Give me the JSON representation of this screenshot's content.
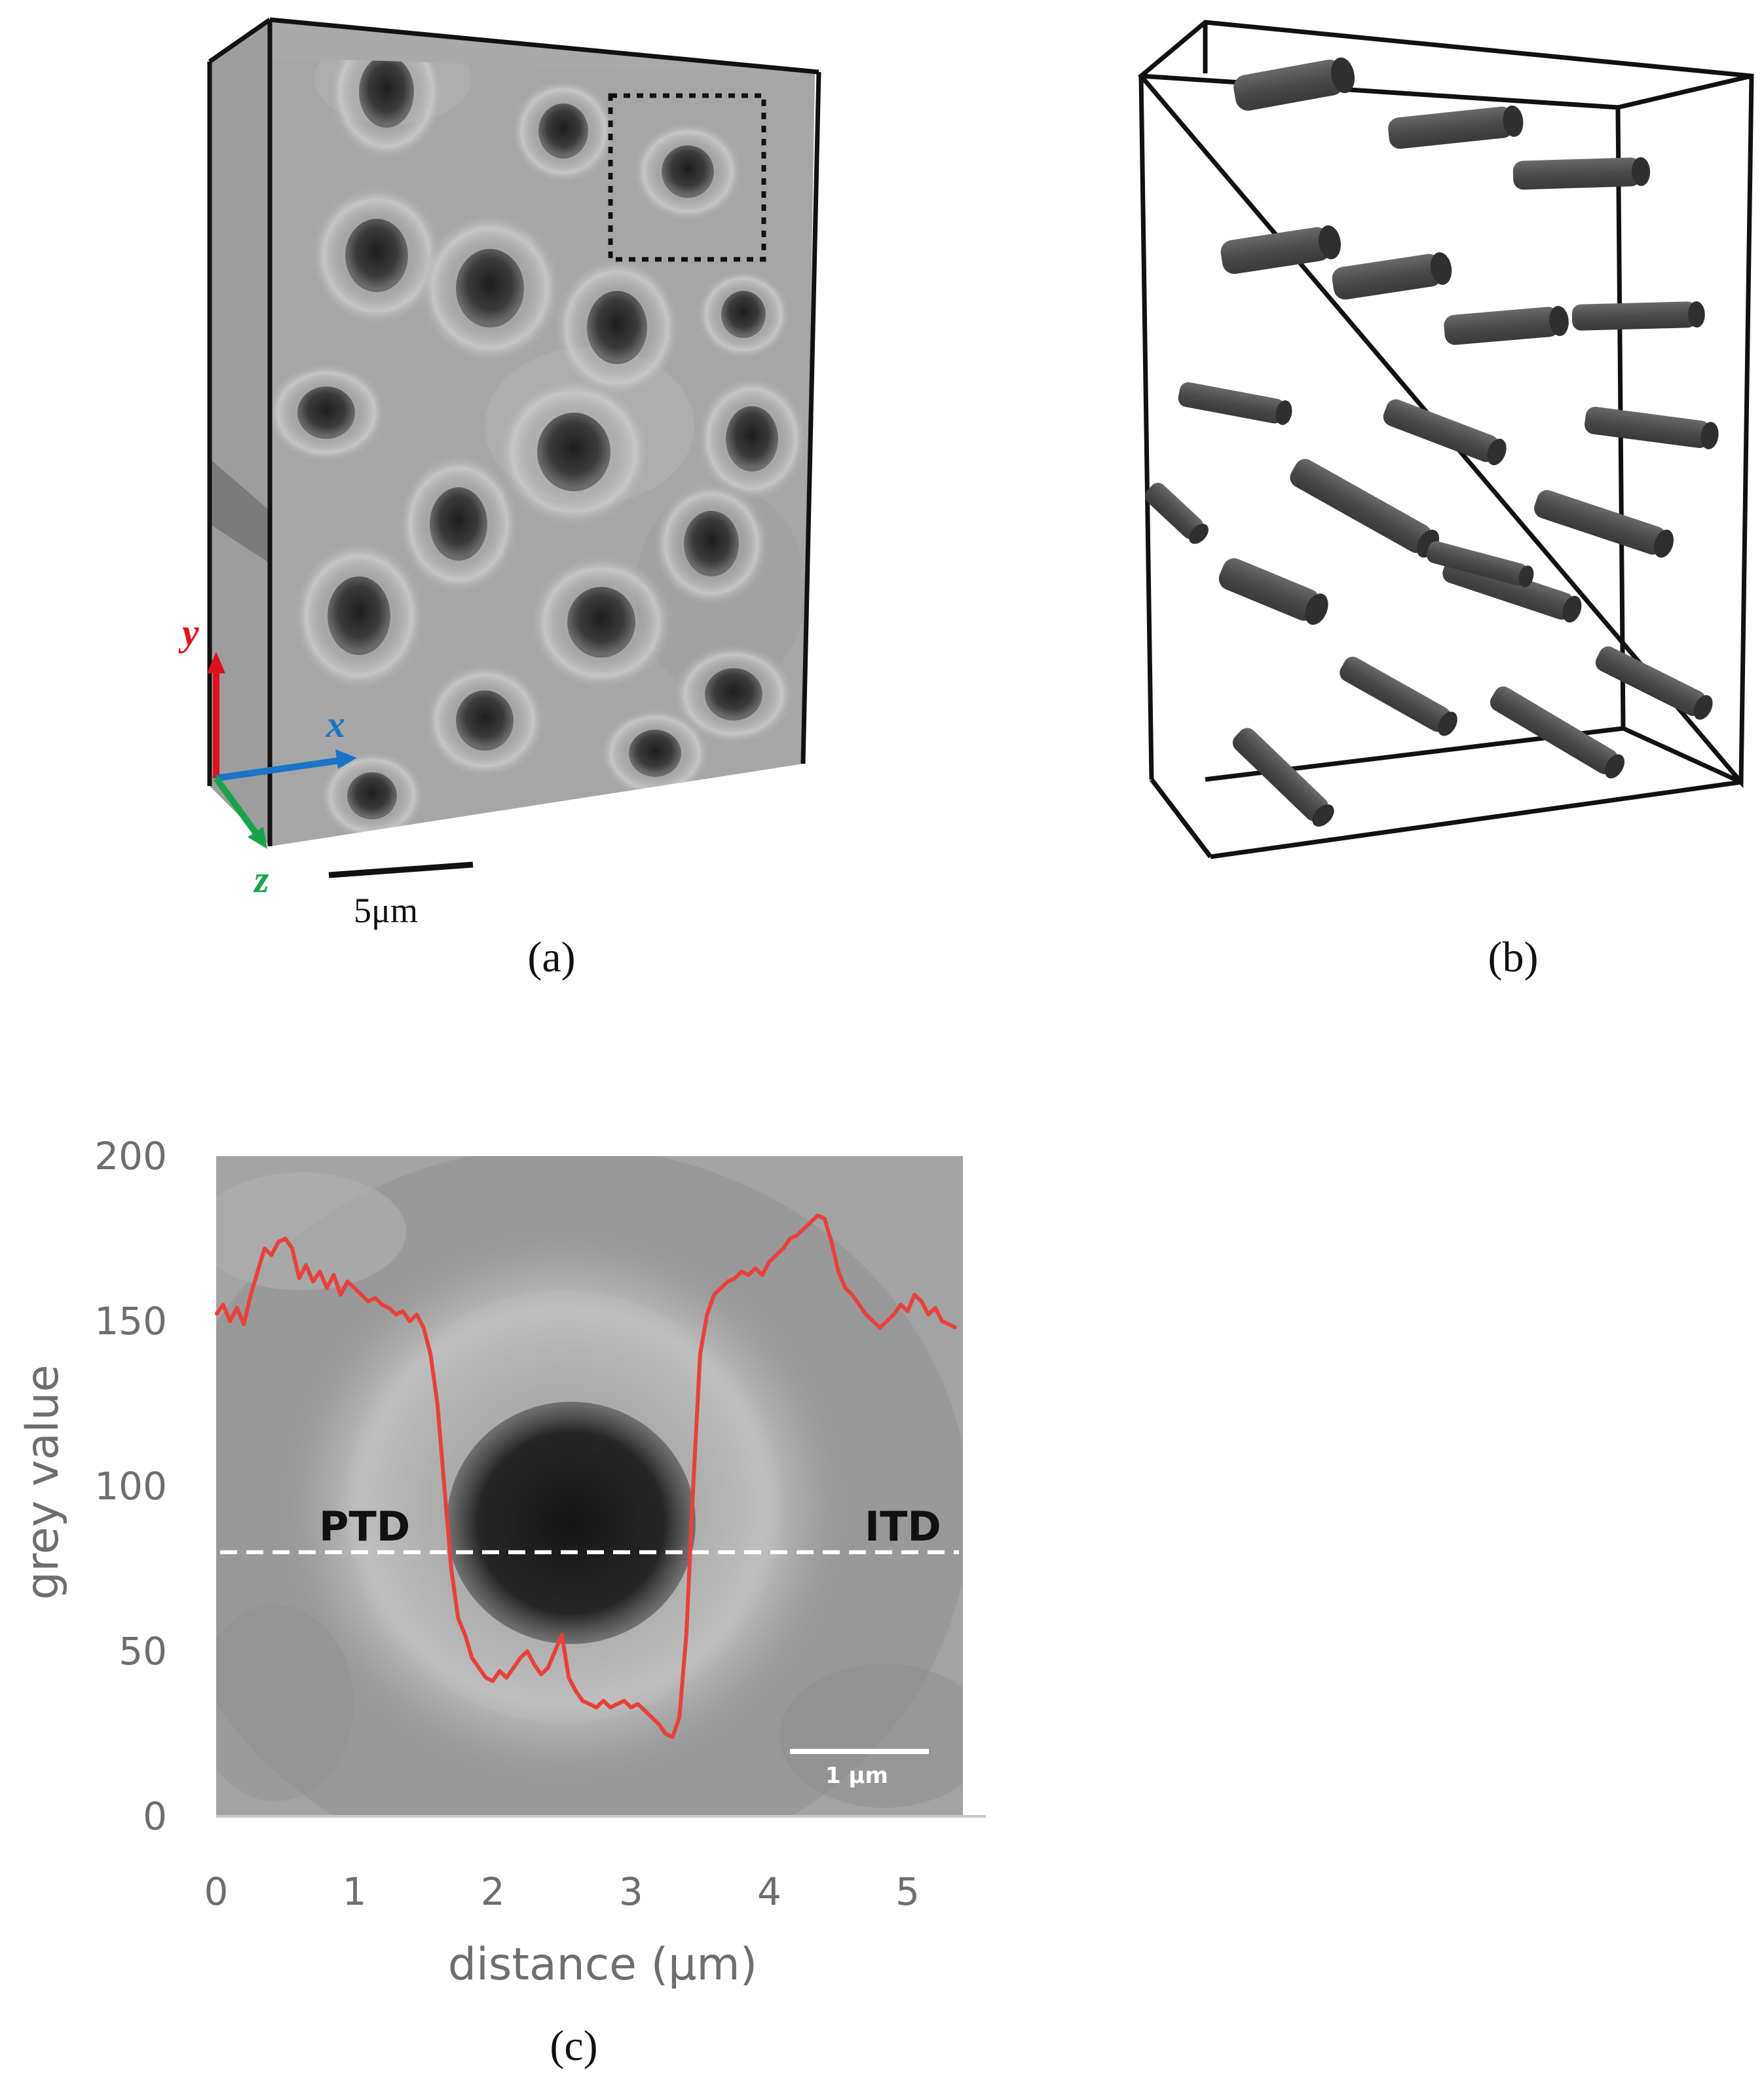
{
  "panel_a": {
    "label": "(a)",
    "axes": {
      "y": "y",
      "x": "x",
      "z": "z"
    },
    "scale_bar": "5μm",
    "colors": {
      "y": "#e0101e",
      "x": "#1a74c8",
      "z": "#18a34a"
    }
  },
  "panel_b": {
    "label": "(b)"
  },
  "panel_c": {
    "label": "(c)",
    "scale_bar": "1 μm",
    "annotations": {
      "left": "PTD",
      "right": "ITD"
    }
  },
  "chart_data": {
    "type": "line",
    "title": "",
    "xlabel": "distance (μm)",
    "ylabel": "grey value",
    "xlim": [
      0,
      5.4
    ],
    "ylim": [
      0,
      200
    ],
    "x_ticks": [
      "0",
      "1",
      "2",
      "3",
      "4",
      "5"
    ],
    "y_ticks": [
      "0",
      "50",
      "100",
      "150",
      "200"
    ],
    "grid": false,
    "threshold": {
      "y": 80,
      "style": "dashed",
      "color": "#ffffff"
    },
    "series": [
      {
        "color": "#e8413c",
        "x": [
          0.0,
          0.05,
          0.1,
          0.15,
          0.2,
          0.25,
          0.3,
          0.35,
          0.4,
          0.45,
          0.5,
          0.55,
          0.6,
          0.65,
          0.7,
          0.75,
          0.8,
          0.85,
          0.9,
          0.95,
          1.0,
          1.05,
          1.1,
          1.15,
          1.2,
          1.25,
          1.3,
          1.35,
          1.4,
          1.45,
          1.5,
          1.55,
          1.6,
          1.65,
          1.7,
          1.75,
          1.8,
          1.85,
          1.9,
          1.95,
          2.0,
          2.05,
          2.1,
          2.15,
          2.2,
          2.25,
          2.3,
          2.35,
          2.4,
          2.45,
          2.5,
          2.55,
          2.6,
          2.65,
          2.7,
          2.75,
          2.8,
          2.85,
          2.9,
          2.95,
          3.0,
          3.05,
          3.1,
          3.15,
          3.2,
          3.25,
          3.3,
          3.35,
          3.4,
          3.45,
          3.5,
          3.55,
          3.6,
          3.65,
          3.7,
          3.75,
          3.8,
          3.85,
          3.9,
          3.95,
          4.0,
          4.05,
          4.1,
          4.15,
          4.2,
          4.25,
          4.3,
          4.35,
          4.4,
          4.45,
          4.5,
          4.55,
          4.6,
          4.65,
          4.7,
          4.75,
          4.8,
          4.85,
          4.9,
          4.95,
          5.0,
          5.05,
          5.1,
          5.15,
          5.2,
          5.25,
          5.3,
          5.35
        ],
        "y": [
          152,
          155,
          150,
          154,
          149,
          158,
          165,
          172,
          170,
          174,
          175,
          172,
          163,
          167,
          162,
          165,
          160,
          164,
          158,
          162,
          160,
          158,
          156,
          157,
          155,
          154,
          152,
          153,
          150,
          152,
          148,
          140,
          125,
          100,
          75,
          60,
          55,
          48,
          45,
          42,
          41,
          44,
          42,
          45,
          48,
          50,
          46,
          43,
          45,
          50,
          55,
          42,
          38,
          35,
          34,
          33,
          35,
          33,
          34,
          35,
          33,
          34,
          32,
          30,
          28,
          25,
          24,
          30,
          55,
          100,
          140,
          152,
          158,
          160,
          162,
          163,
          165,
          164,
          166,
          164,
          168,
          170,
          172,
          175,
          176,
          178,
          180,
          182,
          181,
          174,
          165,
          160,
          158,
          155,
          152,
          150,
          148,
          150,
          152,
          155,
          153,
          158,
          156,
          152,
          154,
          150,
          149,
          148
        ]
      }
    ]
  }
}
